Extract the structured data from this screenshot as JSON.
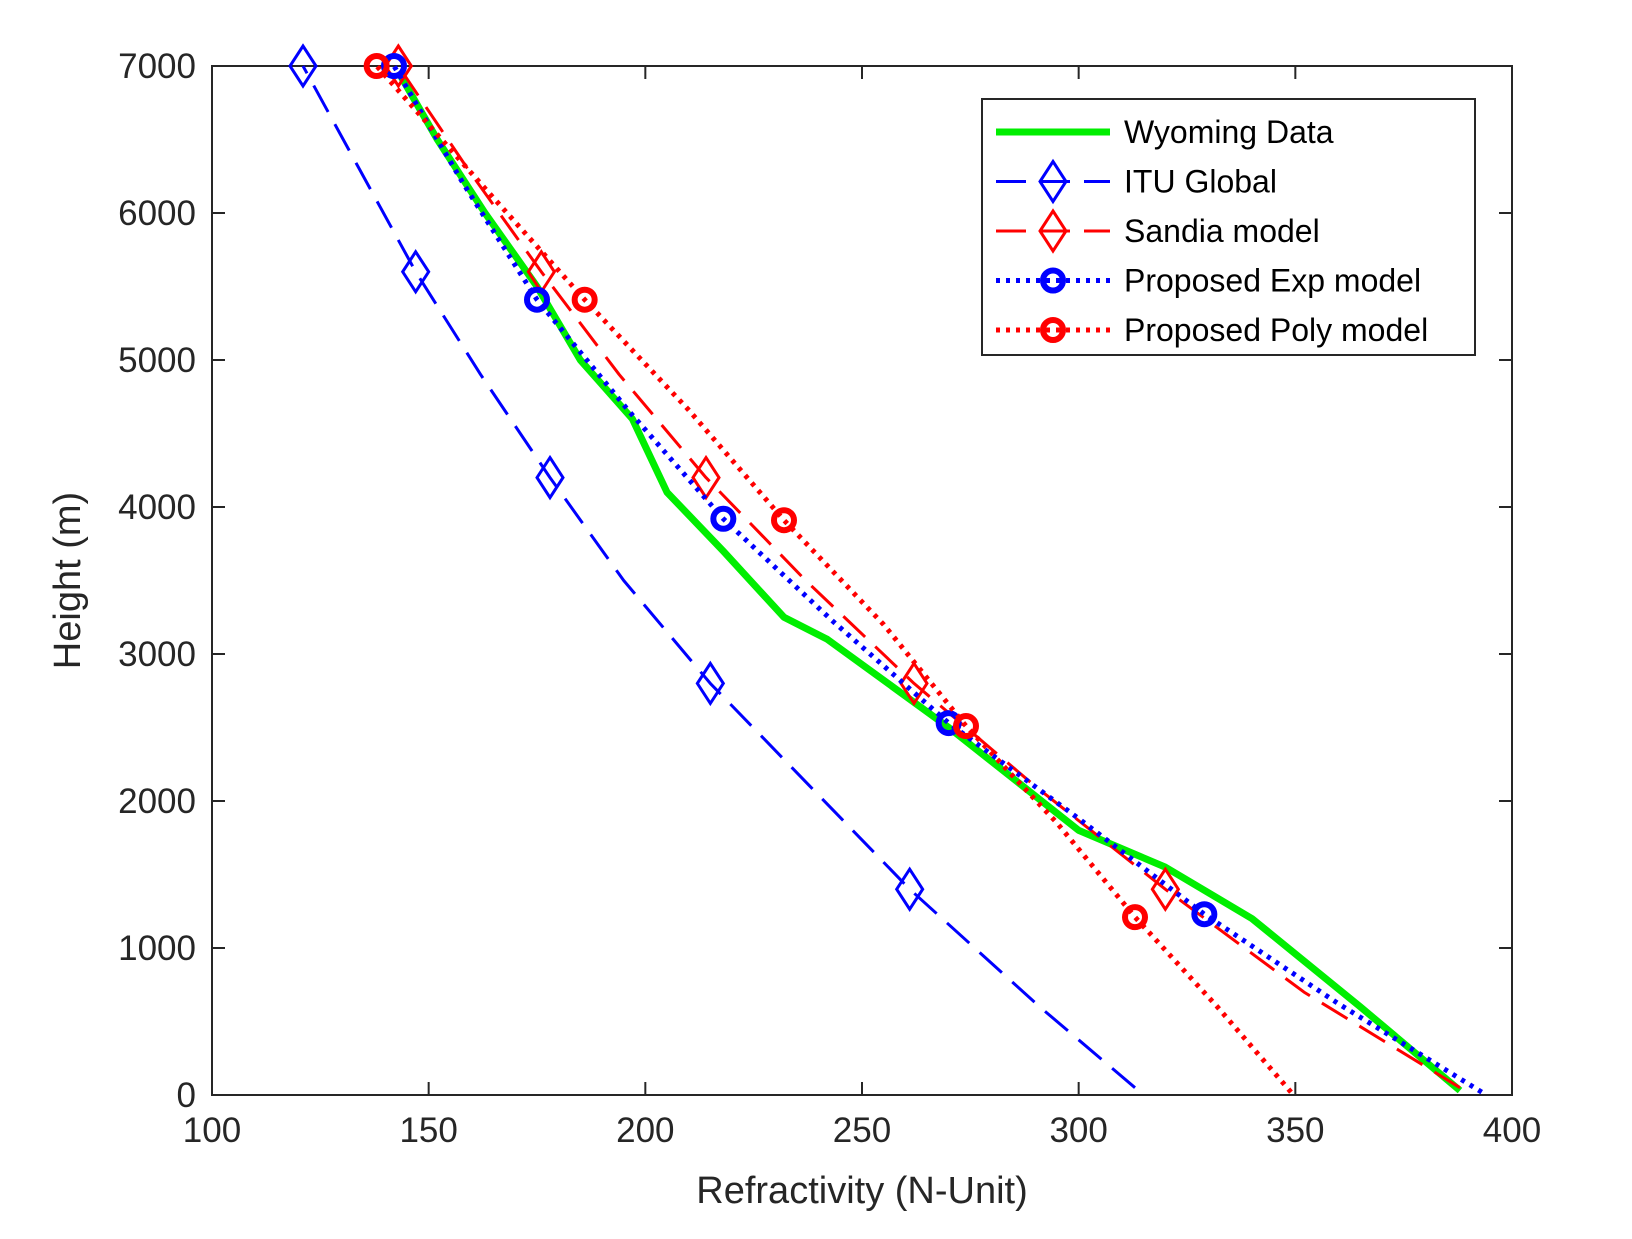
{
  "chart_data": {
    "type": "line",
    "title": "",
    "xlabel": "Refractivity (N-Unit)",
    "ylabel": "Height (m)",
    "xlim": [
      100,
      400
    ],
    "ylim": [
      0,
      7000
    ],
    "xticks": [
      100,
      150,
      200,
      250,
      300,
      350,
      400
    ],
    "yticks": [
      0,
      1000,
      2000,
      3000,
      4000,
      5000,
      6000,
      7000
    ],
    "xtick_labels": [
      "100",
      "150",
      "200",
      "250",
      "300",
      "350",
      "400"
    ],
    "ytick_labels": [
      "0",
      "1000",
      "2000",
      "3000",
      "4000",
      "5000",
      "6000",
      "7000"
    ],
    "grid": false,
    "legend_position": "top-right",
    "series": [
      {
        "name": "Wyoming Data",
        "color": "#00ee00",
        "style": "solid",
        "marker": "none",
        "x": [
          388,
          365,
          340,
          320,
          300,
          270,
          242,
          232,
          218,
          205,
          197,
          185,
          175,
          163,
          152,
          143
        ],
        "y": [
          30,
          600,
          1200,
          1550,
          1800,
          2500,
          3100,
          3250,
          3700,
          4100,
          4600,
          5000,
          5500,
          6000,
          6500,
          6960
        ],
        "marker_x": [],
        "marker_y": []
      },
      {
        "name": "ITU Global",
        "color": "#0000ff",
        "style": "dashed",
        "marker": "diamond",
        "x": [
          313,
          291,
          261,
          238,
          215,
          195,
          178,
          162,
          147,
          134,
          121
        ],
        "y": [
          50,
          600,
          1400,
          2100,
          2800,
          3500,
          4200,
          4900,
          5600,
          6300,
          7000
        ],
        "marker_x": [
          121,
          147,
          178,
          215,
          261
        ],
        "marker_y": [
          7000,
          5600,
          4200,
          2800,
          1400
        ]
      },
      {
        "name": "Sandia model",
        "color": "#ff0000",
        "style": "dashed",
        "marker": "diamond",
        "x": [
          388,
          352,
          320,
          290,
          262,
          237,
          214,
          194,
          176,
          159,
          143
        ],
        "y": [
          50,
          700,
          1400,
          2100,
          2800,
          3500,
          4200,
          4900,
          5600,
          6300,
          7000
        ],
        "marker_x": [
          143,
          176,
          214,
          262,
          320
        ],
        "marker_y": [
          7000,
          5600,
          4200,
          2800,
          1400
        ]
      },
      {
        "name": "Proposed Exp model",
        "color": "#0000ff",
        "style": "dotted",
        "marker": "circle",
        "x": [
          393,
          360,
          329,
          300,
          270,
          243,
          218,
          196,
          175,
          158,
          142
        ],
        "y": [
          20,
          620,
          1230,
          1880,
          2530,
          3230,
          3920,
          4660,
          5410,
          6200,
          7000
        ],
        "marker_x": [
          142,
          175,
          218,
          270,
          329
        ],
        "marker_y": [
          7000,
          5410,
          3920,
          2530,
          1230
        ]
      },
      {
        "name": "Proposed Poly model",
        "color": "#ff0000",
        "style": "dotted",
        "marker": "circle",
        "x": [
          349,
          332,
          313,
          295,
          274,
          255,
          232,
          210,
          186,
          162,
          138
        ],
        "y": [
          20,
          600,
          1210,
          1850,
          2510,
          3200,
          3910,
          4660,
          5410,
          6200,
          7000
        ],
        "marker_x": [
          138,
          186,
          232,
          274,
          313
        ],
        "marker_y": [
          7000,
          5410,
          3910,
          2510,
          1210
        ]
      }
    ]
  }
}
